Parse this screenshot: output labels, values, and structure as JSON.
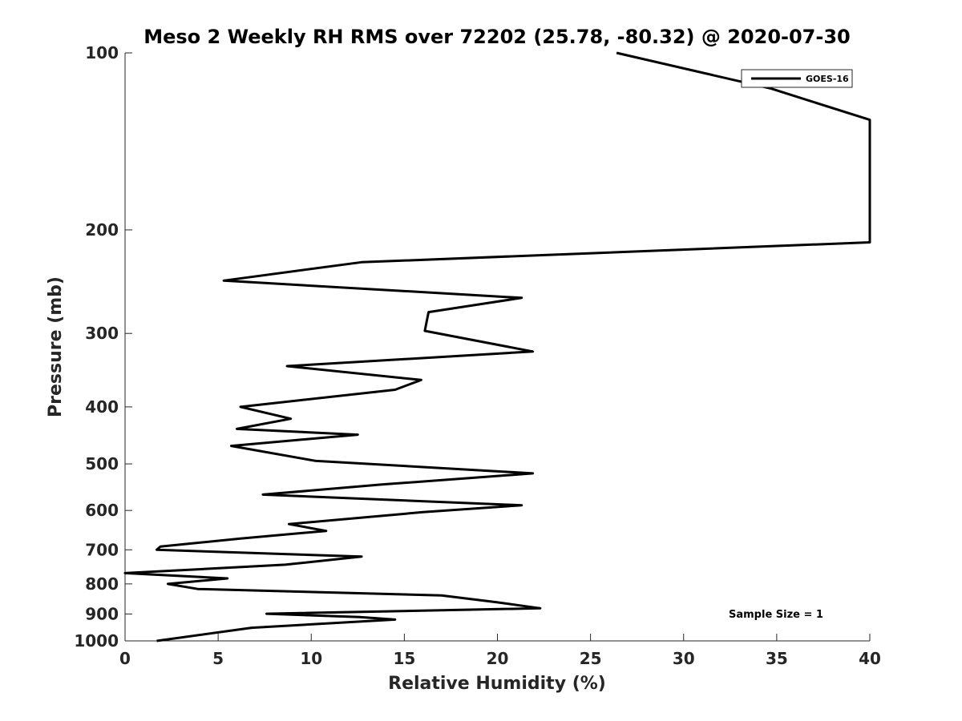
{
  "chart_data": {
    "type": "line",
    "title": "Meso 2 Weekly RH RMS over 72202 (25.78, -80.32) @ 2020-07-30",
    "xlabel": "Relative Humidity (%)",
    "ylabel": "Pressure (mb)",
    "xlim": [
      0,
      40
    ],
    "ylim": [
      100,
      1000
    ],
    "yscale": "log",
    "y_reversed": true,
    "grid": false,
    "legend_position": "top-right",
    "x_ticks": [
      0,
      5,
      10,
      15,
      20,
      25,
      30,
      35,
      40
    ],
    "x_tick_labels": [
      "0",
      "5",
      "10",
      "15",
      "20",
      "25",
      "30",
      "35",
      "40"
    ],
    "y_ticks": [
      100,
      200,
      300,
      400,
      500,
      600,
      700,
      800,
      900,
      1000
    ],
    "y_tick_labels": [
      "100",
      "200",
      "300",
      "400",
      "500",
      "600",
      "700",
      "800",
      "900",
      "1000"
    ],
    "annotation": "Sample Size = 1",
    "series": [
      {
        "name": "GOES-16",
        "color": "#000000",
        "x": [
          26.4,
          34.7,
          40,
          40,
          12.7,
          5.3,
          21.3,
          16.3,
          16.1,
          21.9,
          8.7,
          15.9,
          14.5,
          6.2,
          8.9,
          6.0,
          12.5,
          5.7,
          10.2,
          21.9,
          13.8,
          7.4,
          21.3,
          16.0,
          8.8,
          10.8,
          6.2,
          1.9,
          1.7,
          12.7,
          8.6,
          0.0,
          5.5,
          2.3,
          3.9,
          17.0,
          20.0,
          22.3,
          7.6,
          12.6,
          14.5,
          6.8,
          1.7
        ],
        "y": [
          100,
          115,
          130,
          210,
          227,
          244,
          261,
          276,
          297,
          322,
          341,
          360,
          374,
          400,
          419,
          436,
          446,
          466,
          494,
          519,
          542,
          564,
          588,
          604,
          633,
          650,
          670,
          691,
          700,
          719,
          742,
          767,
          783,
          800,
          816,
          837,
          860,
          880,
          899,
          911,
          920,
          950,
          1000
        ]
      }
    ]
  }
}
